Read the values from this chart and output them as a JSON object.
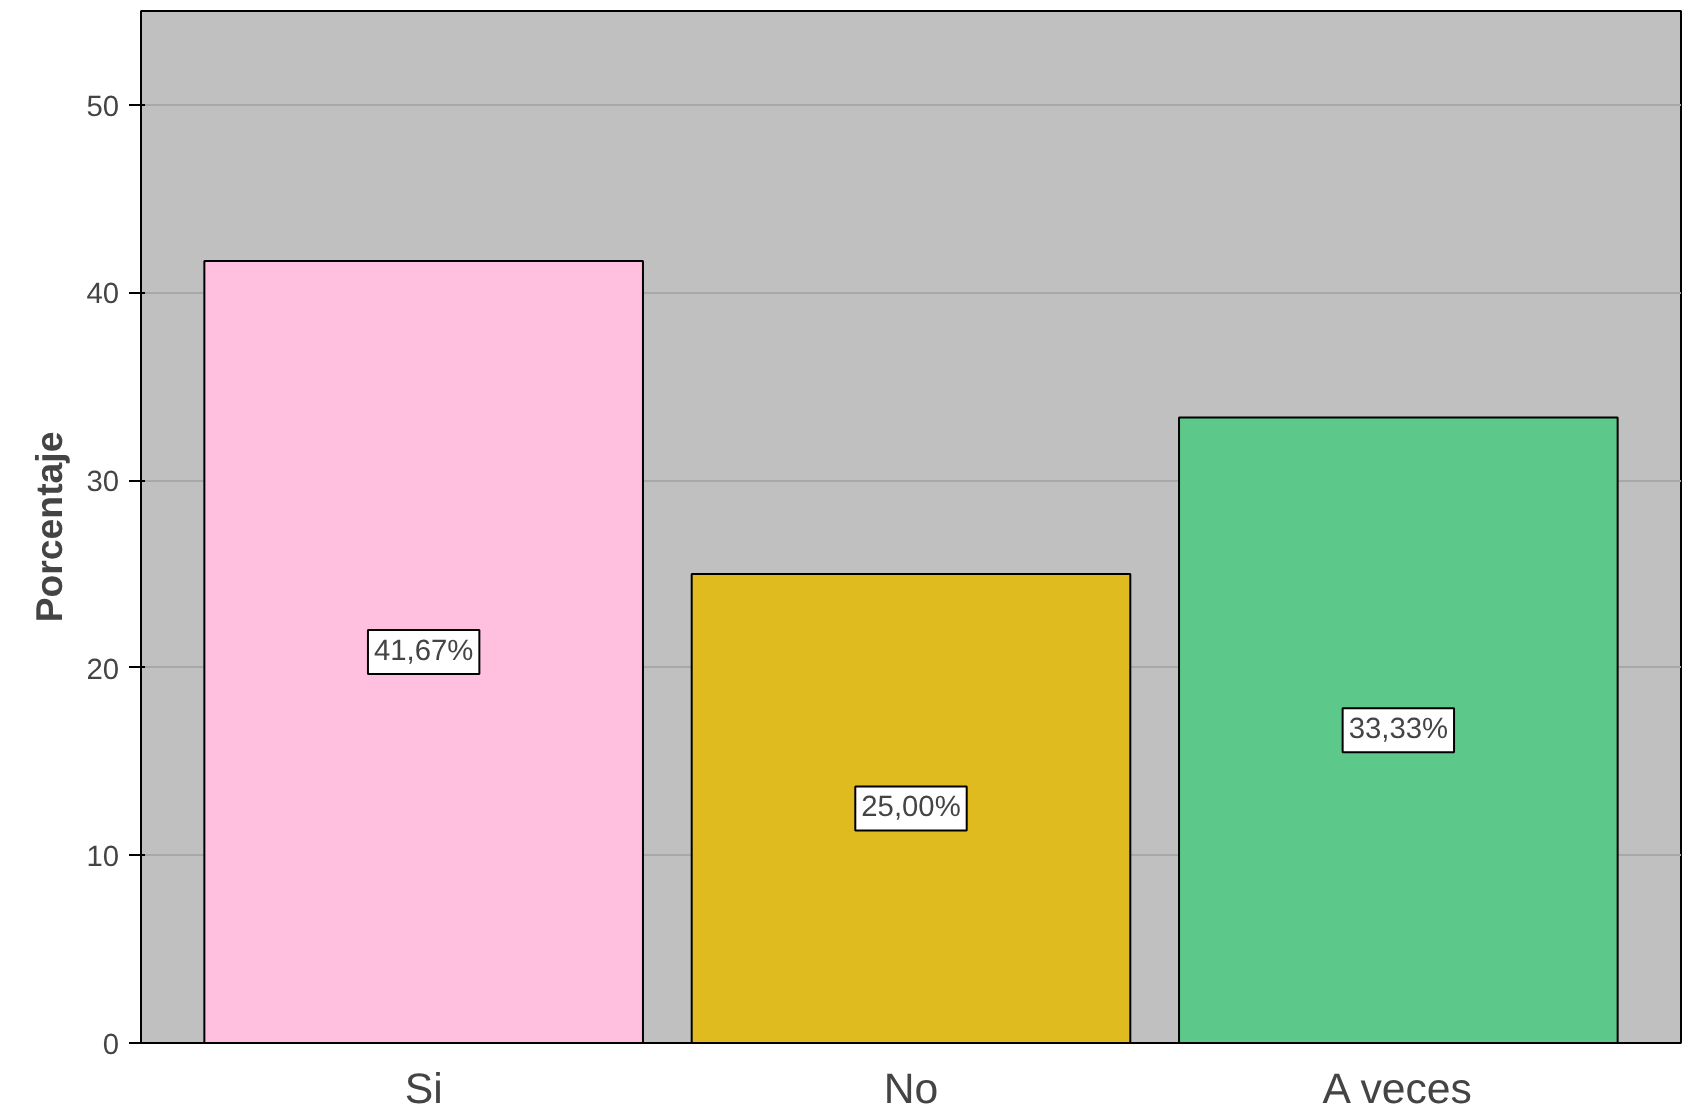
{
  "chart_data": {
    "type": "bar",
    "ylabel": "Porcentaje",
    "categories": [
      "Si",
      "No",
      "A veces"
    ],
    "values": [
      41.67,
      25.0,
      33.33
    ],
    "colors": [
      "#ffc0e0",
      "#e0bb20",
      "#5cc98a"
    ],
    "value_labels": [
      "41,67%",
      "25,00%",
      "33,33%"
    ],
    "ylim": [
      0,
      55
    ],
    "yticks": [
      0,
      10,
      20,
      30,
      40,
      50
    ],
    "grid": "y"
  }
}
